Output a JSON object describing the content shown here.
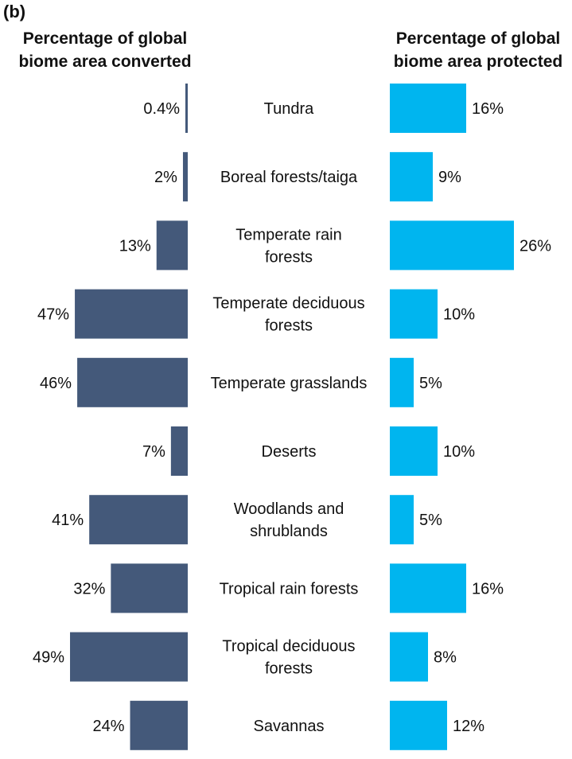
{
  "chart_data": {
    "type": "bar",
    "panel_label": "(b)",
    "left_title": [
      "Percentage of global",
      "biome area converted"
    ],
    "right_title": [
      "Percentage of global",
      "biome area protected"
    ],
    "unit": "%",
    "categories": [
      [
        "Tundra"
      ],
      [
        "Boreal forests/taiga"
      ],
      [
        "Temperate rain",
        "forests"
      ],
      [
        "Temperate deciduous",
        "forests"
      ],
      [
        "Temperate grasslands"
      ],
      [
        "Deserts"
      ],
      [
        "Woodlands and",
        "shrublands"
      ],
      [
        "Tropical rain forests"
      ],
      [
        "Tropical deciduous",
        "forests"
      ],
      [
        "Savannas"
      ]
    ],
    "series": [
      {
        "name": "Percentage of global biome area converted",
        "values": [
          0.4,
          2,
          13,
          47,
          46,
          7,
          41,
          32,
          49,
          24
        ],
        "labels": [
          "0.4%",
          "2%",
          "13%",
          "47%",
          "46%",
          "7%",
          "41%",
          "32%",
          "49%",
          "24%"
        ],
        "color": "#44597a"
      },
      {
        "name": "Percentage of global biome area protected",
        "values": [
          16,
          9,
          26,
          10,
          5,
          10,
          5,
          16,
          8,
          12
        ],
        "labels": [
          "16%",
          "9%",
          "26%",
          "10%",
          "5%",
          "10%",
          "5%",
          "16%",
          "8%",
          "12%"
        ],
        "color": "#00b5ef"
      }
    ]
  }
}
